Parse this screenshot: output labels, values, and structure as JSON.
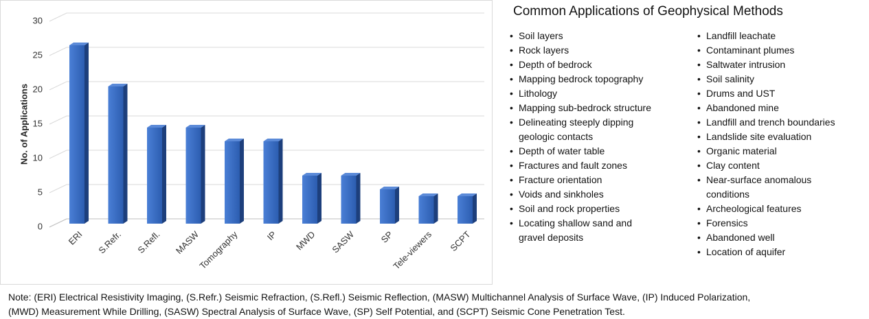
{
  "chart_data": {
    "type": "bar3d",
    "ylabel": "No. of Applications",
    "categories": [
      "ERI",
      "S.Refr.",
      "S.Refl.",
      "MASW",
      "Tomography",
      "IP",
      "MWD",
      "SASW",
      "SP",
      "Tele-viewers",
      "SCPT"
    ],
    "values": [
      26,
      20,
      14,
      14,
      12,
      12,
      7,
      7,
      5,
      4,
      4
    ],
    "color": "#3366c0",
    "ylim": [
      0,
      30
    ],
    "yticks": [
      0,
      5,
      10,
      15,
      20,
      25,
      30
    ],
    "grid": true
  },
  "panel": {
    "title": "Common Applications of Geophysical Methods",
    "left": [
      "Soil layers",
      "Rock layers",
      "Depth of bedrock",
      "Mapping bedrock topography",
      "Lithology",
      "Mapping sub-bedrock structure",
      "Delineating steeply dipping geologic contacts",
      "Depth of water table",
      "Fractures and fault zones",
      "Fracture orientation",
      "Voids and sinkholes",
      "Soil and rock properties",
      "Locating shallow sand and gravel deposits"
    ],
    "right": [
      "Landfill leachate",
      "Contaminant plumes",
      "Saltwater intrusion",
      "Soil salinity",
      "Drums and UST",
      "Abandoned mine",
      "Landfill and trench boundaries",
      "Landslide site evaluation",
      "Organic material",
      "Clay content",
      "Near-surface anomalous conditions",
      "Archeological features",
      "Forensics",
      "Abandoned well",
      "Location of aquifer"
    ]
  },
  "note": [
    "Note: (ERI) Electrical Resistivity Imaging, (S.Refr.) Seismic Refraction, (S.Refl.) Seismic Reflection, (MASW) Multichannel Analysis of Surface Wave, (IP) Induced Polarization,",
    "(MWD) Measurement While Drilling, (SASW) Spectral Analysis of Surface Wave, (SP) Self Potential, and (SCPT) Seismic Cone Penetration Test."
  ]
}
